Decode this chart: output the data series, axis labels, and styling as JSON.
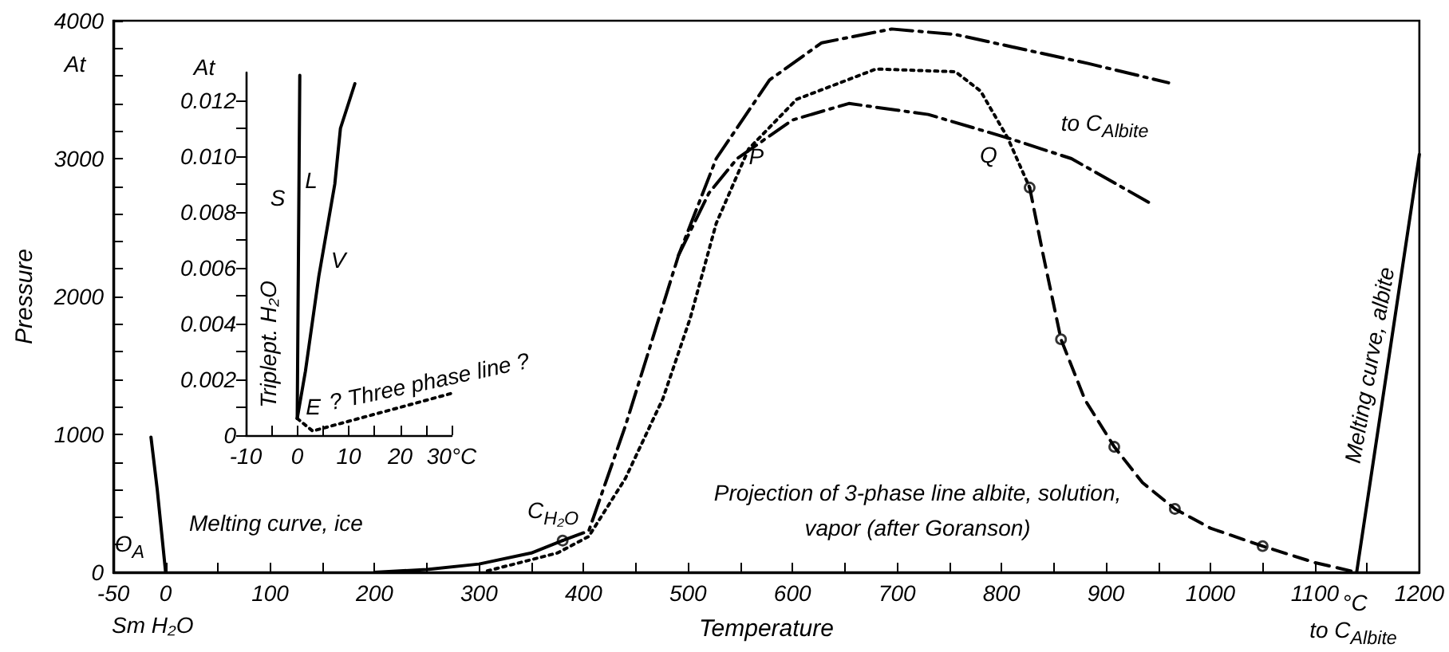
{
  "chart_data": [
    {
      "type": "line",
      "xlabel": "Temperature",
      "ylabel": "Pressure",
      "xlim": [
        -50,
        1200
      ],
      "ylim": [
        0,
        4000
      ],
      "xticks": [
        -50,
        0,
        {
          "value": 50,
          "label": null
        },
        100,
        {
          "value": 150,
          "label": null
        },
        200,
        {
          "value": 250,
          "label": null
        },
        300,
        {
          "value": 350,
          "label": null
        },
        400,
        {
          "value": 450,
          "label": null
        },
        500,
        {
          "value": 550,
          "label": null
        },
        600,
        {
          "value": 650,
          "label": null
        },
        700,
        {
          "value": 750,
          "label": null
        },
        800,
        {
          "value": 850,
          "label": null
        },
        900,
        {
          "value": 950,
          "label": null
        },
        1000,
        {
          "value": 1050,
          "label": null
        },
        1100,
        {
          "value": 1150,
          "label": null
        },
        1200
      ],
      "yticks": [
        0,
        {
          "value": 200,
          "label": null
        },
        {
          "value": 400,
          "label": null
        },
        {
          "value": 600,
          "label": null
        },
        {
          "value": 800,
          "label": null
        },
        1000,
        {
          "value": 1200,
          "label": null
        },
        {
          "value": 1400,
          "label": null
        },
        {
          "value": 1600,
          "label": null
        },
        {
          "value": 1800,
          "label": null
        },
        2000,
        {
          "value": 2200,
          "label": null
        },
        {
          "value": 2400,
          "label": null
        },
        {
          "value": 2600,
          "label": null
        },
        {
          "value": 2800,
          "label": null
        },
        3000,
        {
          "value": 3200,
          "label": null
        },
        {
          "value": 3400,
          "label": null
        },
        {
          "value": 3600,
          "label": null
        },
        {
          "value": 3800,
          "label": null
        },
        4000
      ],
      "series": [
        {
          "color": "#000000",
          "line_style": "solid",
          "x": [
            -14,
            -8,
            -4,
            0
          ],
          "values": [
            980,
            600,
            300,
            0
          ]
        },
        {
          "color": "#000000",
          "line_style": "solid",
          "x": [
            200,
            250,
            300,
            350,
            380
          ],
          "values": [
            0,
            20,
            60,
            140,
            230
          ]
        },
        {
          "color": "#000000",
          "line_style": "dashdot",
          "x": [
            380,
            405,
            440,
            491,
            527,
            578,
            628,
            695,
            756,
            883,
            960
          ],
          "values": [
            230,
            300,
            1060,
            2300,
            3000,
            3570,
            3840,
            3940,
            3900,
            3690,
            3550
          ]
        },
        {
          "color": "#000000",
          "line_style": "dashdot",
          "x": [
            491,
            520,
            547,
            600,
            654,
            730,
            806,
            867,
            944
          ],
          "values": [
            2300,
            2750,
            3000,
            3280,
            3400,
            3320,
            3150,
            3000,
            2670
          ]
        },
        {
          "color": "#000000",
          "line_style": "dotted",
          "x": [
            308,
            375,
            405,
            440,
            476,
            502,
            527,
            558,
            604,
            680,
            756,
            780,
            806,
            827
          ],
          "values": [
            10,
            140,
            260,
            680,
            1260,
            1840,
            2530,
            3070,
            3430,
            3650,
            3630,
            3490,
            3150,
            2790
          ]
        },
        {
          "color": "#000000",
          "line_style": "dashed",
          "x": [
            827,
            840,
            857,
            880,
            908,
            935,
            966,
            1000,
            1050,
            1100,
            1140
          ],
          "values": [
            2790,
            2300,
            1690,
            1250,
            910,
            650,
            460,
            320,
            190,
            70,
            0
          ]
        },
        {
          "color": "#000000",
          "line_style": "solid",
          "x": [
            1140,
            1200
          ],
          "values": [
            0,
            3030
          ]
        },
        {
          "type": "scatter",
          "marker": "circle",
          "color": "#000000",
          "x": [
            380,
            827,
            857,
            908,
            966,
            1050
          ],
          "values": [
            230,
            2790,
            1690,
            910,
            460,
            190
          ]
        }
      ],
      "annotations": [
        "At",
        {
          "text": "O$_{A}$",
          "x": -5,
          "y": 60
        },
        {
          "text": "Melting curve, ice",
          "x": -5,
          "y": 500
        },
        "Sm H₂O",
        {
          "text": "C$_{H₂O}$",
          "x": 380,
          "y": 230
        },
        {
          "text": "P",
          "x": 547,
          "y": 3000
        },
        {
          "text": "Q",
          "x": 806,
          "y": 3150
        },
        {
          "text": "to C$_{Albite}$",
          "x": 960,
          "y": 3550
        },
        "Projection of 3-phase line albite, solution,\nvapor (after Goranson)",
        {
          "text": "Melting curve, albite",
          "x": 1170,
          "y": 1500
        },
        "°C",
        "to C$_{Albite}$"
      ]
    },
    {
      "type": "line",
      "xlim": [
        -10,
        30
      ],
      "ylim": [
        0,
        0.013
      ],
      "xticks": [
        -10,
        {
          "value": -5,
          "label": null
        },
        0,
        {
          "value": 5,
          "label": null
        },
        10,
        {
          "value": 15,
          "label": null
        },
        20,
        {
          "value": 25,
          "label": null
        },
        {
          "value": 30,
          "label": "30°C"
        }
      ],
      "yticks": [
        0,
        {
          "value": 0.001,
          "label": null
        },
        0.002,
        {
          "value": 0.003,
          "label": null
        },
        0.004,
        {
          "value": 0.005,
          "label": null
        },
        0.006,
        {
          "value": 0.007,
          "label": null
        },
        0.008,
        {
          "value": 0.009,
          "label": null
        },
        {
          "value": 0.01,
          "label": "0.010"
        },
        {
          "value": 0.011,
          "label": null
        },
        0.012
      ],
      "series": [
        {
          "color": "#000000",
          "line_style": "solid",
          "x": [
            0,
            0.5
          ],
          "values": [
            0.0006,
            0.0129
          ]
        },
        {
          "color": "#000000",
          "line_style": "solid",
          "x": [
            0,
            1.6,
            4.2,
            7.3,
            8.4,
            11.2
          ],
          "values": [
            0.0006,
            0.0023,
            0.0057,
            0.009,
            0.011,
            0.0126
          ]
        },
        {
          "color": "#000000",
          "line_style": "dotted",
          "x": [
            0,
            3,
            30
          ],
          "values": [
            0.0006,
            0.00015,
            0.0015
          ]
        }
      ],
      "annotations": [
        "At",
        "S",
        "L",
        "V",
        "Triplept. H₂O",
        {
          "text": "E",
          "x": 0,
          "y": 0.0006
        },
        {
          "text": "? Three phase line ?",
          "x": 18,
          "y": 0.0009
        }
      ]
    }
  ]
}
